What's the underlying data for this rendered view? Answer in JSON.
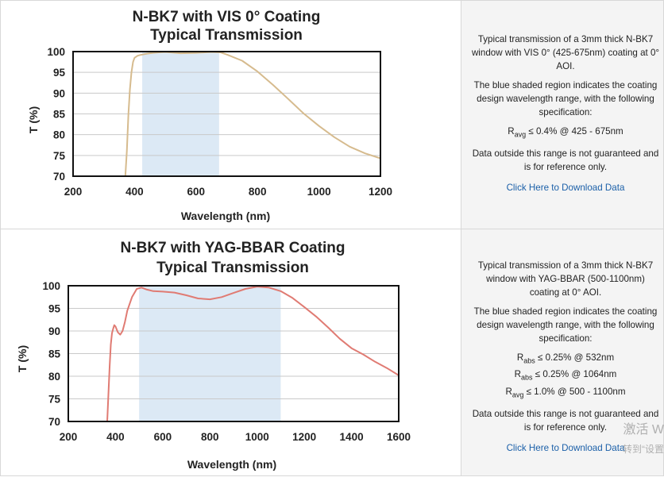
{
  "panels": [
    {
      "title_line1": "N-BK7 with VIS 0° Coating",
      "title_line2": "Typical Transmission",
      "info_paragraph1": "Typical transmission of a 3mm thick N-BK7 window with VIS 0° (425-675nm) coating at 0° AOI.",
      "info_paragraph2": "The blue shaded region indicates the coating design wavelength range, with the following specification:",
      "spec_lines": [
        {
          "sym": "R",
          "sub": "avg",
          "rest": " ≤ 0.4% @ 425 - 675nm"
        }
      ],
      "info_paragraph3": "Data outside this range is not guaranteed and is for reference only.",
      "download_link": "Click Here to Download Data"
    },
    {
      "title_line1": "N-BK7 with YAG-BBAR Coating",
      "title_line2": "Typical Transmission",
      "info_paragraph1": "Typical transmission of a 3mm thick N-BK7 window with YAG-BBAR (500-1100nm) coating at 0° AOI.",
      "info_paragraph2": "The blue shaded region indicates the coating design wavelength range, with the following specification:",
      "spec_lines": [
        {
          "sym": "R",
          "sub": "abs",
          "rest": " ≤ 0.25% @ 532nm"
        },
        {
          "sym": "R",
          "sub": "abs",
          "rest": " ≤ 0.25% @ 1064nm"
        },
        {
          "sym": "R",
          "sub": "avg",
          "rest": " ≤ 1.0% @ 500 - 1100nm"
        }
      ],
      "info_paragraph3": "Data outside this range is not guaranteed and is for reference only.",
      "download_link": "Click Here to Download Data"
    }
  ],
  "watermark": {
    "line1": "激活 W",
    "line2": "转到“设置"
  },
  "chart_data": [
    {
      "type": "line",
      "title": "N-BK7 with VIS 0° Coating Typical Transmission",
      "xlabel": "Wavelength (nm)",
      "ylabel": "T (%)",
      "xlim": [
        200,
        1200
      ],
      "ylim": [
        70,
        100
      ],
      "xticks": [
        200,
        400,
        600,
        800,
        1000,
        1200
      ],
      "yticks": [
        70,
        75,
        80,
        85,
        90,
        95,
        100
      ],
      "grid": true,
      "shaded_range": [
        425,
        675
      ],
      "shade_color": "#dce9f5",
      "series": [
        {
          "color": "#d6bb8e",
          "x": [
            370,
            375,
            380,
            385,
            390,
            395,
            400,
            410,
            420,
            440,
            460,
            480,
            500,
            550,
            600,
            650,
            680,
            700,
            750,
            800,
            850,
            900,
            950,
            1000,
            1050,
            1100,
            1150,
            1200
          ],
          "y": [
            70,
            76,
            85,
            91,
            95,
            97.5,
            98.5,
            99,
            99.2,
            99.5,
            99.7,
            99.8,
            99.9,
            99.6,
            99.7,
            99.9,
            99.8,
            99.3,
            97.8,
            95.2,
            92,
            88.6,
            85.1,
            82.1,
            79.4,
            77.1,
            75.5,
            74.3
          ]
        }
      ]
    },
    {
      "type": "line",
      "title": "N-BK7 with YAG-BBAR Coating Typical Transmission",
      "xlabel": "Wavelength (nm)",
      "ylabel": "T (%)",
      "xlim": [
        200,
        1600
      ],
      "ylim": [
        70,
        100
      ],
      "xticks": [
        200,
        400,
        600,
        800,
        1000,
        1200,
        1400,
        1600
      ],
      "yticks": [
        70,
        75,
        80,
        85,
        90,
        95,
        100
      ],
      "grid": true,
      "shaded_range": [
        500,
        1100
      ],
      "shade_color": "#dce9f5",
      "series": [
        {
          "color": "#e07b73",
          "x": [
            365,
            370,
            375,
            380,
            385,
            390,
            395,
            400,
            410,
            420,
            430,
            440,
            450,
            470,
            490,
            510,
            530,
            560,
            600,
            650,
            700,
            750,
            800,
            850,
            900,
            950,
            1000,
            1050,
            1100,
            1150,
            1200,
            1250,
            1300,
            1350,
            1400,
            1450,
            1500,
            1550,
            1600
          ],
          "y": [
            70,
            76,
            82,
            87,
            89.5,
            90.5,
            91.3,
            91,
            89.7,
            89.2,
            90,
            92,
            94.5,
            97.5,
            99.3,
            99.6,
            99.2,
            98.8,
            98.7,
            98.5,
            97.9,
            97.2,
            97.0,
            97.5,
            98.4,
            99.3,
            99.8,
            99.6,
            98.8,
            97.3,
            95.3,
            93.2,
            90.8,
            88.3,
            86.2,
            84.8,
            83.2,
            81.8,
            80.2
          ]
        }
      ]
    }
  ]
}
